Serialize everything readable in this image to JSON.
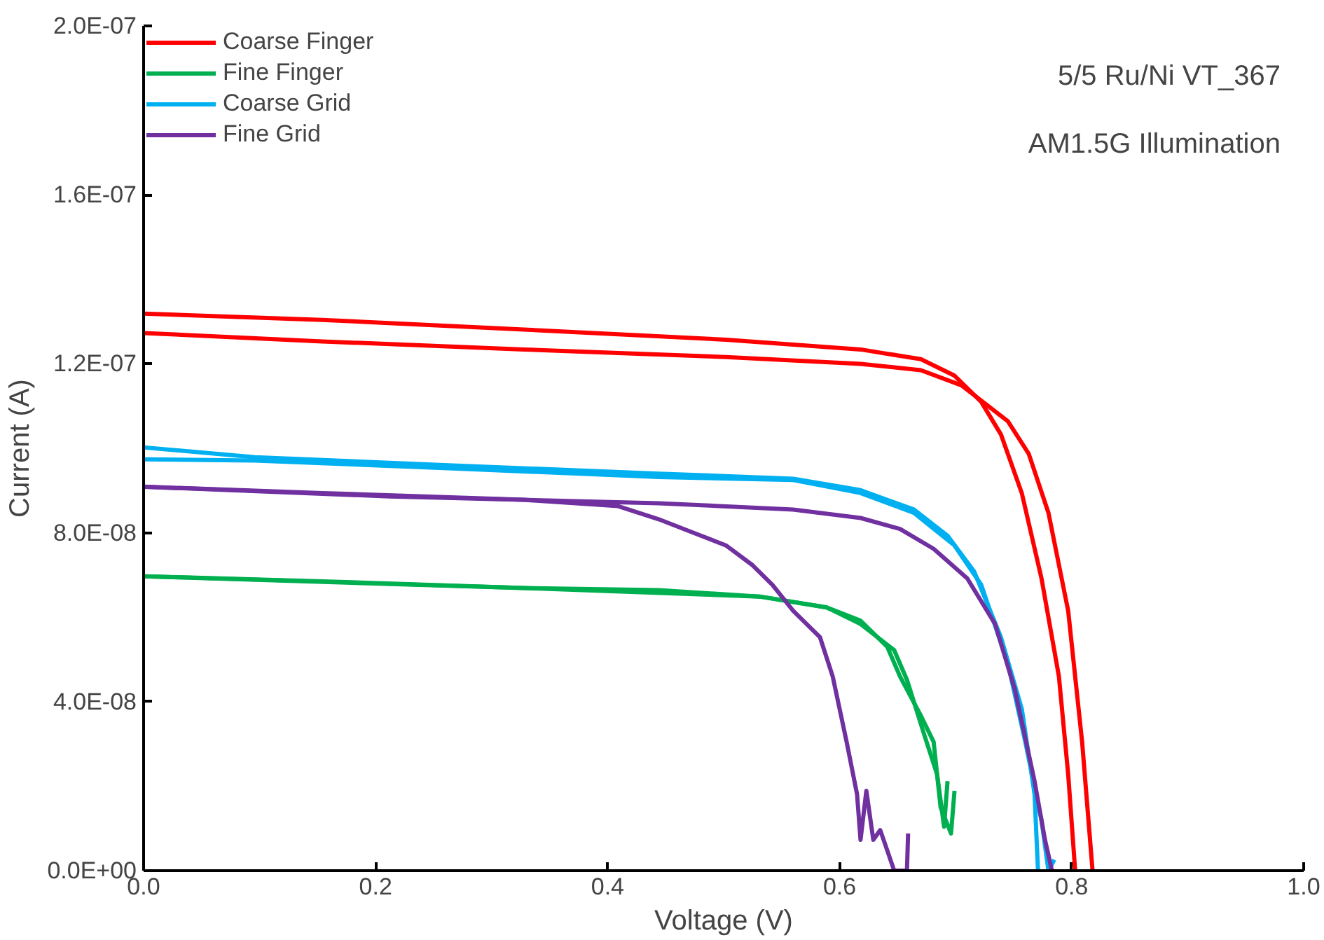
{
  "chart_data": {
    "type": "line",
    "xlabel": "Voltage (V)",
    "ylabel": "Current (A)",
    "annotations": [
      "5/5 Ru/Ni VT_367",
      "AM1.5G Illumination"
    ],
    "xlim": [
      0,
      1
    ],
    "ylim": [
      0,
      2e-07
    ],
    "xticks": [
      {
        "value": 0,
        "label": "0.0"
      },
      {
        "value": 0.2,
        "label": "0.2"
      },
      {
        "value": 0.4,
        "label": "0.4"
      },
      {
        "value": 0.6,
        "label": "0.6"
      },
      {
        "value": 0.8,
        "label": "0.8"
      },
      {
        "value": 1,
        "label": "1.0"
      }
    ],
    "yticks": [
      {
        "value": 0,
        "label": "0.0E+00"
      },
      {
        "value": 4e-08,
        "label": "4.0E-08"
      },
      {
        "value": 8e-08,
        "label": "8.0E-08"
      },
      {
        "value": 1.2e-07,
        "label": "1.2E-07"
      },
      {
        "value": 1.6e-07,
        "label": "1.6E-07"
      },
      {
        "value": 2e-07,
        "label": "2.0E-07"
      }
    ],
    "grid": false,
    "legend": "top left",
    "marker": "none",
    "line_style": "solid",
    "series": [
      {
        "name": "Coarse Finger",
        "color": "#ff0000",
        "x": [
          0,
          0.154,
          0.328,
          0.502,
          0.618,
          0.67,
          0.699,
          0.722,
          0.739,
          0.757,
          0.774,
          0.789,
          0.797,
          0.803
        ],
        "values": [
          1.319e-07,
          1.304e-07,
          1.281e-07,
          1.257e-07,
          1.234e-07,
          1.211e-07,
          1.172e-07,
          1.11e-07,
          1.033e-07,
          8.94e-08,
          6.92e-08,
          4.6e-08,
          2.28e-08,
          0
        ]
      },
      {
        "color": "#ff0000",
        "x": [
          0,
          0.154,
          0.328,
          0.502,
          0.618,
          0.67,
          0.705,
          0.745,
          0.763,
          0.78,
          0.797,
          0.809,
          0.818
        ],
        "values": [
          1.273e-07,
          1.253e-07,
          1.234e-07,
          1.216e-07,
          1.2e-07,
          1.185e-07,
          1.149e-07,
          1.064e-07,
          9.87e-08,
          8.47e-08,
          6.15e-08,
          3.05e-08,
          0
        ]
      },
      {
        "name": "Fine Finger",
        "color": "#00b050",
        "x": [
          0,
          0.154,
          0.328,
          0.444,
          0.531,
          0.589,
          0.618,
          0.641,
          0.652,
          0.67,
          0.681,
          0.687,
          0.696,
          0.699
        ],
        "values": [
          6.97e-08,
          6.85e-08,
          6.69e-08,
          6.64e-08,
          6.49e-08,
          6.23e-08,
          5.92e-08,
          5.3e-08,
          4.6e-08,
          3.67e-08,
          3.05e-08,
          1.5e-08,
          8.8e-09,
          1.89e-08
        ]
      },
      {
        "color": "#00b050",
        "x": [
          0,
          0.328,
          0.531,
          0.589,
          0.618,
          0.647,
          0.658,
          0.673,
          0.684,
          0.69,
          0.693
        ],
        "values": [
          6.97e-08,
          6.69e-08,
          6.49e-08,
          6.23e-08,
          5.84e-08,
          5.22e-08,
          4.52e-08,
          3.21e-08,
          2.28e-08,
          1.04e-08,
          2.12e-08
        ]
      },
      {
        "name": "Coarse Grid",
        "color": "#00b0f0",
        "x": [
          0,
          0.096,
          0.27,
          0.444,
          0.56,
          0.618,
          0.664,
          0.693,
          0.716,
          0.739,
          0.757,
          0.768,
          0.771
        ],
        "values": [
          1.002e-07,
          9.79e-08,
          9.59e-08,
          9.4e-08,
          9.28e-08,
          9.01e-08,
          8.55e-08,
          7.93e-08,
          7.08e-08,
          5.53e-08,
          3.83e-08,
          1.81e-08,
          0
        ]
      },
      {
        "color": "#00b0f0",
        "x": [
          0,
          0.096,
          0.27,
          0.444,
          0.56,
          0.618,
          0.664,
          0.699,
          0.722,
          0.745,
          0.76,
          0.774,
          0.78,
          0.785
        ],
        "values": [
          9.74e-08,
          9.71e-08,
          9.52e-08,
          9.32e-08,
          9.25e-08,
          8.94e-08,
          8.47e-08,
          7.7e-08,
          6.77e-08,
          4.91e-08,
          3.05e-08,
          1.19e-08,
          0,
          2.6e-09
        ]
      },
      {
        "name": "Fine Grid",
        "color": "#7030a0",
        "x": [
          0,
          0.154,
          0.328,
          0.409,
          0.444,
          0.473,
          0.502,
          0.525,
          0.542,
          0.56,
          0.583,
          0.594,
          0.606,
          0.615,
          0.618,
          0.623,
          0.629,
          0.635,
          0.647,
          0.658,
          0.659
        ],
        "values": [
          9.09e-08,
          8.94e-08,
          8.78e-08,
          8.63e-08,
          8.32e-08,
          8.01e-08,
          7.7e-08,
          7.23e-08,
          6.77e-08,
          6.15e-08,
          5.53e-08,
          4.6e-08,
          3.05e-08,
          1.81e-08,
          7.3e-09,
          1.89e-08,
          7.3e-09,
          9.6e-09,
          0,
          0,
          8.8e-09
        ]
      },
      {
        "color": "#7030a0",
        "x": [
          0,
          0.212,
          0.444,
          0.56,
          0.618,
          0.652,
          0.681,
          0.71,
          0.734,
          0.751,
          0.768,
          0.777,
          0.783
        ],
        "values": [
          9.09e-08,
          8.86e-08,
          8.7e-08,
          8.55e-08,
          8.35e-08,
          8.09e-08,
          7.62e-08,
          6.92e-08,
          5.84e-08,
          4.29e-08,
          2.12e-08,
          7.3e-09,
          0
        ]
      }
    ]
  }
}
